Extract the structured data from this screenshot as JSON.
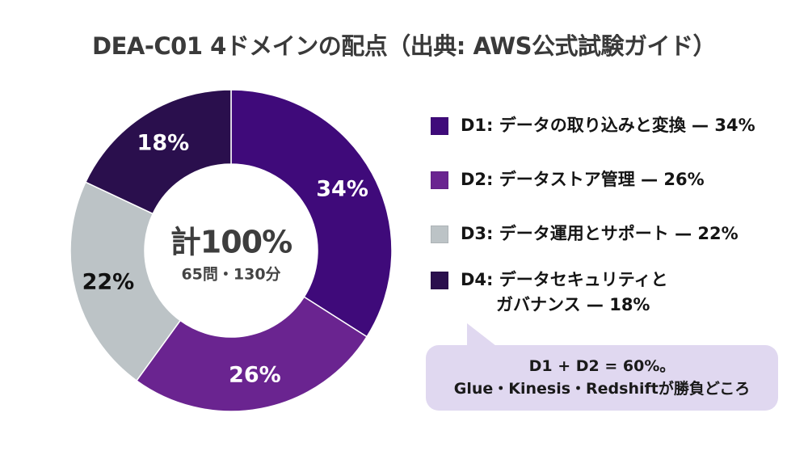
{
  "title": "DEA-C01 4ドメインの配点（出典: AWS公式試験ガイド）",
  "center": {
    "main": "計100%",
    "sub": "65問・130分"
  },
  "segments": [
    {
      "label": "34%",
      "color": "#3f0a7a",
      "text_color": "#ffffff"
    },
    {
      "label": "26%",
      "color": "#6a2490",
      "text_color": "#ffffff"
    },
    {
      "label": "22%",
      "color": "#bcc3c6",
      "text_color": "#111111"
    },
    {
      "label": "18%",
      "color": "#2a0f4d",
      "text_color": "#ffffff"
    }
  ],
  "legend": [
    {
      "line1": "D1: データの取り込みと変換 — 34%",
      "line2": "",
      "color": "#3f0a7a"
    },
    {
      "line1": "D2: データストア管理 — 26%",
      "line2": "",
      "color": "#6a2490"
    },
    {
      "line1": "D3: データ運用とサポート — 22%",
      "line2": "",
      "color": "#bcc3c6"
    },
    {
      "line1": "D4: データセキュリティと",
      "line2": "ガバナンス — 18%",
      "color": "#2a0f4d"
    }
  ],
  "callout": {
    "line1": "D1 + D2 = 60%。",
    "line2": "Glue・Kinesis・Redshiftが勝負どころ",
    "background": "#e0d8f0"
  },
  "chart_data": {
    "type": "pie",
    "subtype": "donut",
    "title": "DEA-C01 4ドメインの配点（出典: AWS公式試験ガイド）",
    "categories": [
      "D1: データの取り込みと変換",
      "D2: データストア管理",
      "D3: データ運用とサポート",
      "D4: データセキュリティとガバナンス"
    ],
    "values": [
      34,
      26,
      22,
      18
    ],
    "unit": "%",
    "colors": [
      "#3f0a7a",
      "#6a2490",
      "#bcc3c6",
      "#2a0f4d"
    ],
    "start_angle_deg": 0,
    "direction": "clockwise",
    "center_label": "計100%",
    "center_sublabel": "65問・130分",
    "legend_position": "right",
    "annotation": "D1 + D2 = 60%。Glue・Kinesis・Redshiftが勝負どころ"
  }
}
